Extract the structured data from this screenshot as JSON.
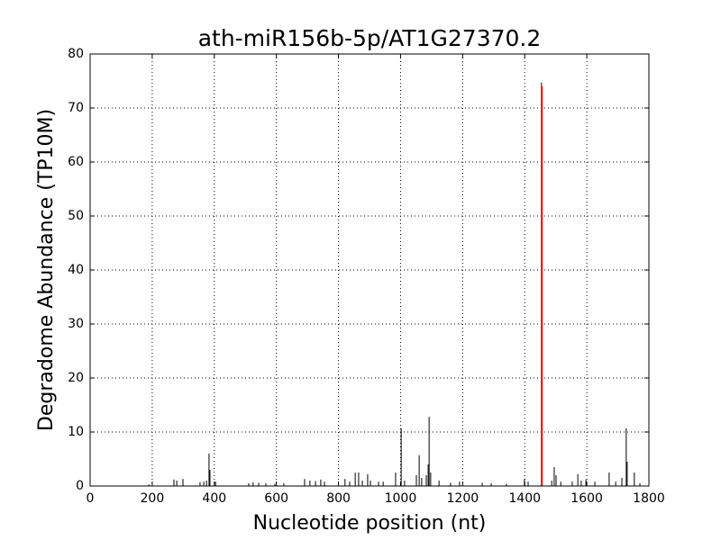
{
  "chart_data": {
    "type": "bar",
    "title": "ath-miR156b-5p/AT1G27370.2",
    "x_label": "Nucleotide position (nt)",
    "y_label": "Degradome Abundance (TP10M)",
    "series": [
      {
        "color": "#000000",
        "x": [
          189,
          270,
          279,
          299,
          354,
          366,
          375,
          383,
          386,
          404,
          511,
          525,
          543,
          566,
          595,
          624,
          691,
          708,
          726,
          743,
          755,
          821,
          836,
          854,
          865,
          877,
          894,
          903,
          929,
          944,
          984,
          1002,
          1013,
          1051,
          1060,
          1068,
          1083,
          1089,
          1092,
          1097,
          1124,
          1161,
          1190,
          1263,
          1292,
          1341,
          1399,
          1411,
          1454,
          1487,
          1495,
          1501,
          1516,
          1553,
          1571,
          1582,
          1597,
          1626,
          1672,
          1693,
          1713,
          1727,
          1730,
          1753,
          1771
        ],
        "values": [
          0.3,
          1.2,
          1.0,
          1.3,
          0.7,
          0.8,
          1.0,
          6.0,
          3.0,
          0.8,
          0.5,
          0.7,
          0.6,
          0.5,
          0.4,
          0.5,
          1.3,
          1.0,
          0.9,
          1.2,
          0.8,
          1.3,
          0.8,
          2.5,
          2.5,
          1.0,
          2.2,
          1.0,
          0.8,
          0.8,
          2.5,
          10.7,
          1.0,
          2.0,
          5.7,
          1.5,
          2.0,
          4.0,
          12.8,
          2.5,
          1.0,
          0.6,
          0.8,
          0.6,
          0.5,
          0.4,
          1.3,
          0.8,
          74.7,
          1.0,
          3.5,
          2.0,
          0.8,
          0.8,
          2.2,
          1.0,
          1.2,
          0.8,
          2.5,
          0.8,
          1.5,
          10.7,
          4.5,
          2.5,
          0.5
        ]
      },
      {
        "color": "#ff0000",
        "x": [
          1455
        ],
        "values": [
          74
        ]
      }
    ],
    "xlim": [
      0,
      1800
    ],
    "xticks": [
      0,
      200,
      400,
      600,
      800,
      1000,
      1200,
      1400,
      1600,
      1800
    ],
    "ylim": [
      0,
      80
    ],
    "yticks": [
      0,
      10,
      20,
      30,
      40,
      50,
      60,
      70,
      80
    ],
    "grid": true
  }
}
